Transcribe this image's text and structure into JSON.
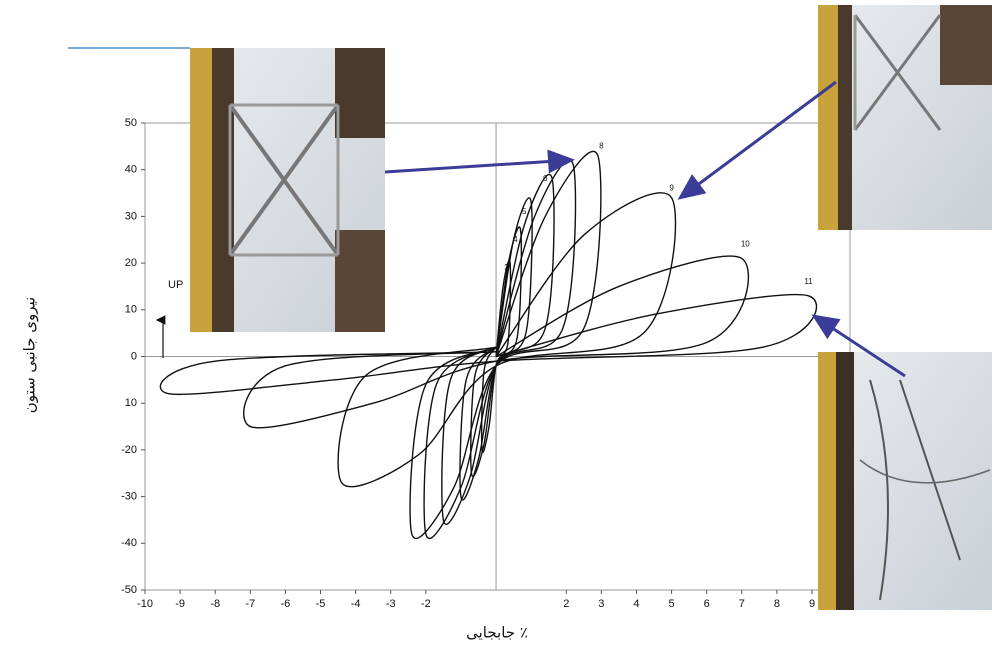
{
  "chart_data": {
    "type": "line",
    "x_label": "جابجایی ٪",
    "y_label": "نیروی جانبی ستون",
    "annotation": "UP",
    "xlim": [
      -10,
      9
    ],
    "xticks": [
      -10,
      -9,
      -8,
      -7,
      -6,
      -5,
      -4,
      -3,
      -2,
      2,
      3,
      4,
      5,
      6,
      7,
      8,
      9
    ],
    "ylim": [
      -50,
      50
    ],
    "yticks": [
      -50,
      -40,
      -30,
      -20,
      {
        "value": -10,
        "label": "10"
      },
      0,
      10,
      20,
      30,
      40,
      50
    ],
    "peak_labels": [
      {
        "text": "3",
        "x": 0.3,
        "y": 19
      },
      {
        "text": "4",
        "x": 0.55,
        "y": 25
      },
      {
        "text": "5",
        "x": 0.8,
        "y": 31
      },
      {
        "text": "6",
        "x": 1.4,
        "y": 38
      },
      {
        "text": "8",
        "x": 3.0,
        "y": 45
      },
      {
        "text": "9",
        "x": 5.0,
        "y": 36
      },
      {
        "text": "10",
        "x": 7.1,
        "y": 24
      },
      {
        "text": "11",
        "x": 8.9,
        "y": 16
      }
    ],
    "series": [
      {
        "color": "#111111",
        "x": [
          0,
          0.2,
          0.4,
          0.34,
          0,
          -0.2,
          -0.4,
          -0.34,
          0
        ],
        "values": [
          0,
          15,
          20,
          3,
          -2,
          -15,
          -20,
          -3,
          2
        ]
      },
      {
        "color": "#111111",
        "x": [
          0,
          0.35,
          0.7,
          0.6,
          0,
          -0.35,
          -0.7,
          -0.6,
          0
        ],
        "values": [
          0,
          20,
          27,
          4,
          -2,
          -19,
          -25,
          -4,
          2
        ]
      },
      {
        "color": "#111111",
        "x": [
          0,
          0.5,
          1,
          0.85,
          0,
          -0.5,
          -1,
          -0.85,
          0
        ],
        "values": [
          0,
          25,
          33,
          5,
          -2,
          -22,
          -30,
          -5,
          2
        ]
      },
      {
        "color": "#111111",
        "x": [
          0,
          0.8,
          1.6,
          1.4,
          0,
          -0.75,
          -1.5,
          -1.3,
          0
        ],
        "values": [
          0,
          28,
          38,
          6,
          -2,
          -26,
          -35,
          -5,
          2
        ]
      },
      {
        "color": "#111111",
        "x": [
          0,
          1.1,
          2.2,
          1.9,
          0,
          -1,
          -2,
          -1.7,
          0
        ],
        "values": [
          0,
          30,
          41,
          6,
          -2,
          -28,
          -38,
          -6,
          2
        ]
      },
      {
        "color": "#111111",
        "x": [
          0,
          1.4,
          2.9,
          2.5,
          0,
          -1.2,
          -2.4,
          -2,
          0
        ],
        "values": [
          0,
          30,
          43,
          6,
          -2,
          -28,
          -38,
          -6,
          2
        ]
      },
      {
        "color": "#111111",
        "x": [
          0,
          2.5,
          5,
          4.2,
          0,
          -2.2,
          -4.4,
          -3.7,
          0
        ],
        "values": [
          0,
          26,
          34,
          5,
          -2,
          -21,
          -27,
          -4,
          2
        ]
      },
      {
        "color": "#111111",
        "x": [
          0,
          3.5,
          7,
          6,
          0,
          -3.5,
          -7,
          -6,
          0
        ],
        "values": [
          0,
          15,
          21,
          3,
          -1,
          -10,
          -15,
          -2,
          1
        ]
      },
      {
        "color": "#111111",
        "x": [
          0,
          4.5,
          8.9,
          7.6,
          0,
          -4.6,
          -9.3,
          -8,
          0
        ],
        "values": [
          0,
          9,
          13,
          2,
          -1,
          -5,
          -8,
          -1,
          1
        ]
      }
    ]
  }
}
